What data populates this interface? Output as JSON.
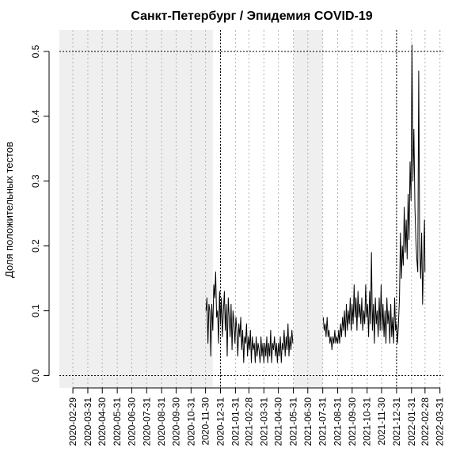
{
  "chart_data": {
    "type": "line",
    "title": "Санкт-Петербург / Эпидемия COVID-19",
    "xlabel": "",
    "ylabel": "Доля положительных тестов",
    "ylim": [
      0.0,
      0.5
    ],
    "yticks": [
      "0.0",
      "0.1",
      "0.2",
      "0.3",
      "0.4",
      "0.5"
    ],
    "xticks": [
      "2020-02-29",
      "2020-03-31",
      "2020-04-30",
      "2020-05-31",
      "2020-06-30",
      "2020-07-31",
      "2020-08-31",
      "2020-09-30",
      "2020-10-31",
      "2020-11-30",
      "2020-12-31",
      "2021-01-31",
      "2021-02-28",
      "2021-03-31",
      "2021-04-30",
      "2021-05-31",
      "2021-06-30",
      "2021-07-31",
      "2021-08-31",
      "2021-09-30",
      "2021-10-31",
      "2021-11-30",
      "2021-12-31",
      "2022-01-31",
      "2022-02-28",
      "2022-03-31"
    ],
    "xrange": [
      "2020-02-01",
      "2022-04-07"
    ],
    "shaded_periods": [
      [
        "2020-02-01",
        "2020-12-15"
      ],
      [
        "2021-06-01",
        "2021-07-31"
      ]
    ],
    "vertical_reference_lines": [
      "2020-12-31",
      "2021-12-31"
    ],
    "horizontal_reference_lines": [
      0.0,
      0.5
    ],
    "grid": "vertical dotted at month ends",
    "series": [
      {
        "color": "#000000",
        "segments": [
          [
            [
              "2020-12-01",
              0.1
            ],
            [
              "2020-12-03",
              0.12
            ],
            [
              "2020-12-05",
              0.05
            ],
            [
              "2020-12-07",
              0.11
            ],
            [
              "2020-12-09",
              0.1
            ],
            [
              "2020-12-11",
              0.03
            ],
            [
              "2020-12-13",
              0.11
            ],
            [
              "2020-12-15",
              0.07
            ],
            [
              "2020-12-17",
              0.14
            ],
            [
              "2020-12-19",
              0.12
            ],
            [
              "2020-12-21",
              0.16
            ],
            [
              "2020-12-23",
              0.09
            ],
            [
              "2020-12-25",
              0.1
            ],
            [
              "2020-12-27",
              0.05
            ],
            [
              "2020-12-29",
              0.13
            ],
            [
              "2020-12-31",
              0.08
            ],
            [
              "2021-01-02",
              0.12
            ],
            [
              "2021-01-04",
              0.06
            ],
            [
              "2021-01-06",
              0.1
            ],
            [
              "2021-01-08",
              0.13
            ],
            [
              "2021-01-10",
              0.07
            ],
            [
              "2021-01-12",
              0.11
            ],
            [
              "2021-01-14",
              0.03
            ],
            [
              "2021-01-16",
              0.12
            ],
            [
              "2021-01-18",
              0.09
            ],
            [
              "2021-01-20",
              0.06
            ],
            [
              "2021-01-22",
              0.11
            ],
            [
              "2021-01-24",
              0.04
            ],
            [
              "2021-01-26",
              0.1
            ],
            [
              "2021-01-28",
              0.08
            ],
            [
              "2021-01-30",
              0.05
            ],
            [
              "2021-02-01",
              0.09
            ],
            [
              "2021-02-03",
              0.07
            ],
            [
              "2021-02-05",
              0.03
            ],
            [
              "2021-02-07",
              0.08
            ],
            [
              "2021-02-09",
              0.06
            ],
            [
              "2021-02-11",
              0.09
            ],
            [
              "2021-02-13",
              0.04
            ],
            [
              "2021-02-15",
              0.07
            ],
            [
              "2021-02-17",
              0.02
            ],
            [
              "2021-02-19",
              0.06
            ],
            [
              "2021-02-21",
              0.05
            ],
            [
              "2021-02-23",
              0.08
            ],
            [
              "2021-02-25",
              0.03
            ],
            [
              "2021-02-27",
              0.06
            ],
            [
              "2021-03-01",
              0.04
            ],
            [
              "2021-03-03",
              0.07
            ],
            [
              "2021-03-05",
              0.02
            ],
            [
              "2021-03-07",
              0.06
            ],
            [
              "2021-03-09",
              0.04
            ],
            [
              "2021-03-11",
              0.05
            ],
            [
              "2021-03-13",
              0.02
            ],
            [
              "2021-03-15",
              0.06
            ],
            [
              "2021-03-17",
              0.03
            ],
            [
              "2021-03-19",
              0.05
            ],
            [
              "2021-03-21",
              0.04
            ],
            [
              "2021-03-23",
              0.02
            ],
            [
              "2021-03-25",
              0.06
            ],
            [
              "2021-03-27",
              0.03
            ],
            [
              "2021-03-29",
              0.05
            ],
            [
              "2021-03-31",
              0.02
            ],
            [
              "2021-04-02",
              0.05
            ],
            [
              "2021-04-04",
              0.03
            ],
            [
              "2021-04-06",
              0.06
            ],
            [
              "2021-04-08",
              0.02
            ],
            [
              "2021-04-10",
              0.05
            ],
            [
              "2021-04-12",
              0.03
            ],
            [
              "2021-04-14",
              0.07
            ],
            [
              "2021-04-16",
              0.02
            ],
            [
              "2021-04-18",
              0.05
            ],
            [
              "2021-04-20",
              0.04
            ],
            [
              "2021-04-22",
              0.06
            ],
            [
              "2021-04-24",
              0.03
            ],
            [
              "2021-04-26",
              0.05
            ],
            [
              "2021-04-28",
              0.02
            ],
            [
              "2021-04-30",
              0.05
            ],
            [
              "2021-05-02",
              0.03
            ],
            [
              "2021-05-04",
              0.06
            ],
            [
              "2021-05-06",
              0.02
            ],
            [
              "2021-05-08",
              0.05
            ],
            [
              "2021-05-10",
              0.04
            ],
            [
              "2021-05-12",
              0.07
            ],
            [
              "2021-05-14",
              0.03
            ],
            [
              "2021-05-16",
              0.06
            ],
            [
              "2021-05-18",
              0.04
            ],
            [
              "2021-05-20",
              0.08
            ],
            [
              "2021-05-22",
              0.03
            ],
            [
              "2021-05-24",
              0.06
            ],
            [
              "2021-05-26",
              0.04
            ],
            [
              "2021-05-28",
              0.07
            ],
            [
              "2021-05-30",
              0.05
            ]
          ],
          [
            [
              "2021-08-01",
              0.09
            ],
            [
              "2021-08-03",
              0.07
            ],
            [
              "2021-08-05",
              0.08
            ],
            [
              "2021-08-07",
              0.06
            ],
            [
              "2021-08-09",
              0.09
            ],
            [
              "2021-08-11",
              0.06
            ],
            [
              "2021-08-13",
              0.07
            ],
            [
              "2021-08-15",
              0.05
            ],
            [
              "2021-08-17",
              0.06
            ],
            [
              "2021-08-19",
              0.04
            ],
            [
              "2021-08-21",
              0.06
            ],
            [
              "2021-08-23",
              0.05
            ],
            [
              "2021-08-25",
              0.07
            ],
            [
              "2021-08-27",
              0.05
            ],
            [
              "2021-08-29",
              0.06
            ],
            [
              "2021-08-31",
              0.05
            ],
            [
              "2021-09-02",
              0.07
            ],
            [
              "2021-09-04",
              0.05
            ],
            [
              "2021-09-06",
              0.08
            ],
            [
              "2021-09-08",
              0.06
            ],
            [
              "2021-09-10",
              0.09
            ],
            [
              "2021-09-12",
              0.07
            ],
            [
              "2021-09-14",
              0.1
            ],
            [
              "2021-09-16",
              0.06
            ],
            [
              "2021-09-18",
              0.11
            ],
            [
              "2021-09-20",
              0.07
            ],
            [
              "2021-09-22",
              0.1
            ],
            [
              "2021-09-24",
              0.08
            ],
            [
              "2021-09-26",
              0.12
            ],
            [
              "2021-09-28",
              0.07
            ],
            [
              "2021-09-30",
              0.11
            ],
            [
              "2021-10-02",
              0.08
            ],
            [
              "2021-10-04",
              0.14
            ],
            [
              "2021-10-06",
              0.09
            ],
            [
              "2021-10-08",
              0.12
            ],
            [
              "2021-10-10",
              0.07
            ],
            [
              "2021-10-12",
              0.13
            ],
            [
              "2021-10-14",
              0.09
            ],
            [
              "2021-10-16",
              0.11
            ],
            [
              "2021-10-18",
              0.08
            ],
            [
              "2021-10-20",
              0.12
            ],
            [
              "2021-10-22",
              0.07
            ],
            [
              "2021-10-24",
              0.1
            ],
            [
              "2021-10-26",
              0.08
            ],
            [
              "2021-10-28",
              0.14
            ],
            [
              "2021-10-30",
              0.09
            ],
            [
              "2021-11-01",
              0.11
            ],
            [
              "2021-11-03",
              0.06
            ],
            [
              "2021-11-05",
              0.13
            ],
            [
              "2021-11-07",
              0.08
            ],
            [
              "2021-11-09",
              0.19
            ],
            [
              "2021-11-11",
              0.07
            ],
            [
              "2021-11-13",
              0.11
            ],
            [
              "2021-11-15",
              0.05
            ],
            [
              "2021-11-17",
              0.12
            ],
            [
              "2021-11-19",
              0.08
            ],
            [
              "2021-11-21",
              0.1
            ],
            [
              "2021-11-23",
              0.06
            ],
            [
              "2021-11-25",
              0.12
            ],
            [
              "2021-11-27",
              0.07
            ],
            [
              "2021-11-29",
              0.14
            ],
            [
              "2021-12-01",
              0.07
            ],
            [
              "2021-12-03",
              0.11
            ],
            [
              "2021-12-05",
              0.06
            ],
            [
              "2021-12-07",
              0.1
            ],
            [
              "2021-12-09",
              0.05
            ],
            [
              "2021-12-11",
              0.12
            ],
            [
              "2021-12-13",
              0.08
            ],
            [
              "2021-12-15",
              0.1
            ],
            [
              "2021-12-17",
              0.05
            ],
            [
              "2021-12-19",
              0.11
            ],
            [
              "2021-12-21",
              0.06
            ],
            [
              "2021-12-23",
              0.09
            ],
            [
              "2021-12-25",
              0.05
            ],
            [
              "2021-12-27",
              0.12
            ],
            [
              "2021-12-29",
              0.07
            ],
            [
              "2021-12-31",
              0.08
            ],
            [
              "2022-01-02",
              0.05
            ],
            [
              "2022-01-04",
              0.08
            ],
            [
              "2022-01-06",
              0.12
            ],
            [
              "2022-01-08",
              0.22
            ],
            [
              "2022-01-10",
              0.15
            ],
            [
              "2022-01-12",
              0.2
            ],
            [
              "2022-01-14",
              0.17
            ],
            [
              "2022-01-16",
              0.26
            ],
            [
              "2022-01-18",
              0.19
            ],
            [
              "2022-01-20",
              0.24
            ],
            [
              "2022-01-22",
              0.18
            ],
            [
              "2022-01-24",
              0.28
            ],
            [
              "2022-01-26",
              0.21
            ],
            [
              "2022-01-28",
              0.33
            ],
            [
              "2022-01-30",
              0.27
            ],
            [
              "2022-02-01",
              0.51
            ],
            [
              "2022-02-03",
              0.3
            ],
            [
              "2022-02-05",
              0.38
            ],
            [
              "2022-02-07",
              0.26
            ],
            [
              "2022-02-09",
              0.21
            ],
            [
              "2022-02-11",
              0.18
            ],
            [
              "2022-02-13",
              0.16
            ],
            [
              "2022-02-15",
              0.47
            ],
            [
              "2022-02-17",
              0.2
            ],
            [
              "2022-02-19",
              0.15
            ],
            [
              "2022-02-21",
              0.22
            ],
            [
              "2022-02-23",
              0.11
            ],
            [
              "2022-02-25",
              0.18
            ],
            [
              "2022-02-27",
              0.24
            ],
            [
              "2022-02-28",
              0.16
            ]
          ]
        ]
      }
    ]
  }
}
